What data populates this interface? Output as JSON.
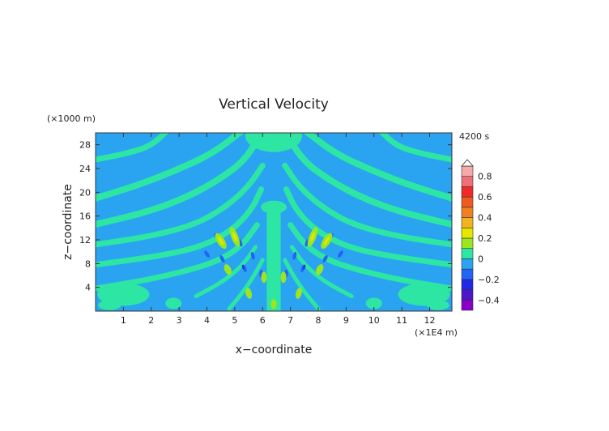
{
  "chart_data": {
    "type": "heatmap",
    "title": "Vertical Velocity",
    "time_label": "4200 s",
    "xlabel": "x−coordinate",
    "ylabel": "z−coordinate",
    "x_unit": "(×1E4 m)",
    "y_unit": "(×1000 m)",
    "xlim": [
      0,
      12.8
    ],
    "ylim": [
      0,
      30
    ],
    "x_ticks": [
      1,
      2,
      3,
      4,
      5,
      6,
      7,
      8,
      9,
      10,
      11,
      12
    ],
    "x_tick_labels": [
      "1",
      "2",
      "3",
      "4",
      "5",
      "6",
      "7",
      "8",
      "9",
      "10",
      "11",
      "12"
    ],
    "y_ticks": [
      4,
      8,
      12,
      16,
      20,
      24,
      28
    ],
    "y_tick_labels": [
      "4",
      "8",
      "12",
      "16",
      "20",
      "24",
      "28"
    ],
    "field": "wave pattern symmetric about x = 6.4 (×1E4 m); bands of positive (~0.1) and near-zero values, strongest magnitudes (~0.2–0.3) near x = 4.5–5 and 7.8–8.3 at z = 8–13",
    "colorbar": {
      "levels": [
        -0.4,
        -0.2,
        0,
        0.2,
        0.4,
        0.6,
        0.8
      ],
      "level_labels": [
        "−0.4",
        "−0.2",
        "0",
        "0.2",
        "0.4",
        "0.6",
        "0.8"
      ],
      "bins": [
        {
          "from": -0.5,
          "to": -0.4,
          "color": "#8a00c8"
        },
        {
          "from": -0.4,
          "to": -0.3,
          "color": "#4a18c8"
        },
        {
          "from": -0.3,
          "to": -0.2,
          "color": "#1e28e6"
        },
        {
          "from": -0.2,
          "to": -0.1,
          "color": "#2264f5"
        },
        {
          "from": -0.1,
          "to": 0.0,
          "color": "#2aa4f0"
        },
        {
          "from": 0.0,
          "to": 0.1,
          "color": "#2de6a4"
        },
        {
          "from": 0.1,
          "to": 0.2,
          "color": "#9ae620"
        },
        {
          "from": 0.2,
          "to": 0.3,
          "color": "#e6e600"
        },
        {
          "from": 0.3,
          "to": 0.4,
          "color": "#f0b41e"
        },
        {
          "from": 0.4,
          "to": 0.5,
          "color": "#f08020"
        },
        {
          "from": 0.5,
          "to": 0.6,
          "color": "#f05a20"
        },
        {
          "from": 0.6,
          "to": 0.7,
          "color": "#f02828"
        },
        {
          "from": 0.7,
          "to": 0.8,
          "color": "#f06e78"
        },
        {
          "from": 0.8,
          "to": 0.9,
          "color": "#f4aaaa"
        }
      ],
      "overflow_arrow": "top"
    }
  }
}
